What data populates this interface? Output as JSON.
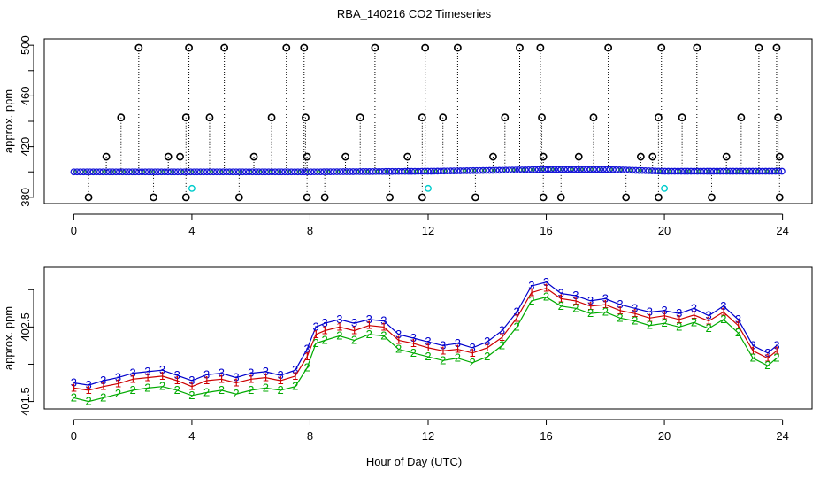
{
  "title": "RBA_140216  CO2 Timeseries",
  "xlabel": "Hour of Day (UTC)",
  "chart_data": [
    {
      "type": "scatter",
      "name": "top-panel",
      "ylabel": "approx. ppm",
      "xlim": [
        -1,
        25
      ],
      "ylim": [
        375,
        505
      ],
      "xticks": [
        0,
        4,
        8,
        12,
        16,
        20,
        24
      ],
      "yticks": [
        380,
        420,
        460,
        500
      ],
      "yticks_minor": [
        400,
        440,
        480
      ],
      "baseline": [
        [
          0,
          400
        ],
        [
          8,
          400
        ],
        [
          12,
          400.5
        ],
        [
          15,
          401.5
        ],
        [
          16,
          402
        ],
        [
          18,
          402
        ],
        [
          20,
          400.5
        ],
        [
          24,
          400.5
        ]
      ],
      "high_points": [
        [
          1.1,
          412
        ],
        [
          1.6,
          443
        ],
        [
          2.2,
          498
        ],
        [
          3.2,
          412
        ],
        [
          3.6,
          412
        ],
        [
          3.8,
          443
        ],
        [
          3.9,
          498
        ],
        [
          4.6,
          443
        ],
        [
          5.1,
          498
        ],
        [
          6.1,
          412
        ],
        [
          6.7,
          443
        ],
        [
          7.2,
          498
        ],
        [
          7.8,
          498
        ],
        [
          7.85,
          443
        ],
        [
          7.9,
          412
        ],
        [
          9.2,
          412
        ],
        [
          9.7,
          443
        ],
        [
          10.2,
          498
        ],
        [
          11.3,
          412
        ],
        [
          11.8,
          443
        ],
        [
          11.9,
          498
        ],
        [
          12.5,
          443
        ],
        [
          13.0,
          498
        ],
        [
          14.2,
          412
        ],
        [
          14.6,
          443
        ],
        [
          15.1,
          498
        ],
        [
          15.8,
          498
        ],
        [
          15.85,
          443
        ],
        [
          15.9,
          412
        ],
        [
          17.1,
          412
        ],
        [
          17.6,
          443
        ],
        [
          18.1,
          498
        ],
        [
          19.2,
          412
        ],
        [
          19.6,
          412
        ],
        [
          19.8,
          443
        ],
        [
          19.9,
          498
        ],
        [
          20.6,
          443
        ],
        [
          21.1,
          498
        ],
        [
          22.1,
          412
        ],
        [
          22.6,
          443
        ],
        [
          23.2,
          498
        ],
        [
          23.8,
          498
        ],
        [
          23.85,
          443
        ],
        [
          23.9,
          412
        ]
      ],
      "low_points": [
        [
          0.5,
          380
        ],
        [
          2.7,
          380
        ],
        [
          3.8,
          380
        ],
        [
          5.6,
          380
        ],
        [
          7.9,
          380
        ],
        [
          8.5,
          380
        ],
        [
          10.7,
          380
        ],
        [
          11.8,
          380
        ],
        [
          13.6,
          380
        ],
        [
          15.9,
          380
        ],
        [
          16.5,
          380
        ],
        [
          18.7,
          380
        ],
        [
          19.8,
          380
        ],
        [
          21.6,
          380
        ],
        [
          23.9,
          380
        ]
      ],
      "cyan_points": [
        [
          4.0,
          387
        ],
        [
          12.0,
          387
        ],
        [
          20.0,
          387
        ]
      ]
    },
    {
      "type": "line",
      "name": "bottom-panel",
      "ylabel": "approx. ppm",
      "xlim": [
        -1,
        25
      ],
      "ylim": [
        401.4,
        403.3
      ],
      "xticks": [
        0,
        4,
        8,
        12,
        16,
        20,
        24
      ],
      "yticks": [
        401.5,
        402.5
      ],
      "yticks_minor": [
        402.0,
        403.0
      ],
      "series": [
        {
          "name": "3",
          "color": "#0000cc",
          "x": [
            0,
            0.5,
            1,
            1.5,
            2,
            2.5,
            3,
            3.5,
            4,
            4.5,
            5,
            5.5,
            6,
            6.5,
            7,
            7.5,
            7.9,
            8.2,
            8.5,
            9,
            9.5,
            10,
            10.5,
            11,
            11.5,
            12,
            12.5,
            13,
            13.5,
            14,
            14.5,
            15,
            15.5,
            16,
            16.5,
            17,
            17.5,
            18,
            18.5,
            19,
            19.5,
            20,
            20.5,
            21,
            21.5,
            22,
            22.5,
            23,
            23.5,
            23.8
          ],
          "values": [
            401.75,
            401.72,
            401.78,
            401.82,
            401.88,
            401.9,
            401.92,
            401.85,
            401.78,
            401.86,
            401.88,
            401.82,
            401.88,
            401.9,
            401.85,
            401.92,
            402.2,
            402.5,
            402.55,
            402.6,
            402.55,
            402.6,
            402.58,
            402.4,
            402.35,
            402.3,
            402.25,
            402.28,
            402.22,
            402.3,
            402.45,
            402.7,
            403.05,
            403.1,
            402.95,
            402.92,
            402.85,
            402.88,
            402.8,
            402.75,
            402.7,
            402.72,
            402.68,
            402.75,
            402.65,
            402.78,
            402.6,
            402.25,
            402.15,
            402.25
          ]
        },
        {
          "name": "1",
          "color": "#cc0000",
          "x": [
            0,
            0.5,
            1,
            1.5,
            2,
            2.5,
            3,
            3.5,
            4,
            4.5,
            5,
            5.5,
            6,
            6.5,
            7,
            7.5,
            7.9,
            8.2,
            8.5,
            9,
            9.5,
            10,
            10.5,
            11,
            11.5,
            12,
            12.5,
            13,
            13.5,
            14,
            14.5,
            15,
            15.5,
            16,
            16.5,
            17,
            17.5,
            18,
            18.5,
            19,
            19.5,
            20,
            20.5,
            21,
            21.5,
            22,
            22.5,
            23,
            23.5,
            23.8
          ],
          "values": [
            401.68,
            401.65,
            401.7,
            401.74,
            401.8,
            401.82,
            401.84,
            401.78,
            401.7,
            401.78,
            401.8,
            401.75,
            401.8,
            401.82,
            401.78,
            401.84,
            402.1,
            402.4,
            402.45,
            402.5,
            402.45,
            402.52,
            402.5,
            402.32,
            402.28,
            402.22,
            402.18,
            402.2,
            402.15,
            402.22,
            402.36,
            402.62,
            402.96,
            403.02,
            402.88,
            402.85,
            402.78,
            402.8,
            402.72,
            402.68,
            402.62,
            402.65,
            402.6,
            402.66,
            402.58,
            402.7,
            402.52,
            402.18,
            402.08,
            402.18
          ]
        },
        {
          "name": "2",
          "color": "#00aa00",
          "x": [
            0,
            0.5,
            1,
            1.5,
            2,
            2.5,
            3,
            3.5,
            4,
            4.5,
            5,
            5.5,
            6,
            6.5,
            7,
            7.5,
            7.9,
            8.2,
            8.5,
            9,
            9.5,
            10,
            10.5,
            11,
            11.5,
            12,
            12.5,
            13,
            13.5,
            14,
            14.5,
            15,
            15.5,
            16,
            16.5,
            17,
            17.5,
            18,
            18.5,
            19,
            19.5,
            20,
            20.5,
            21,
            21.5,
            22,
            22.5,
            23,
            23.5,
            23.8
          ],
          "values": [
            401.55,
            401.5,
            401.55,
            401.6,
            401.65,
            401.68,
            401.7,
            401.65,
            401.58,
            401.62,
            401.65,
            401.6,
            401.65,
            401.68,
            401.65,
            401.7,
            401.95,
            402.28,
            402.32,
            402.38,
            402.32,
            402.4,
            402.38,
            402.2,
            402.15,
            402.1,
            402.05,
            402.08,
            402.02,
            402.1,
            402.25,
            402.5,
            402.85,
            402.9,
            402.78,
            402.75,
            402.68,
            402.7,
            402.62,
            402.58,
            402.52,
            402.55,
            402.5,
            402.56,
            402.48,
            402.6,
            402.42,
            402.08,
            401.98,
            402.08
          ]
        }
      ]
    }
  ]
}
